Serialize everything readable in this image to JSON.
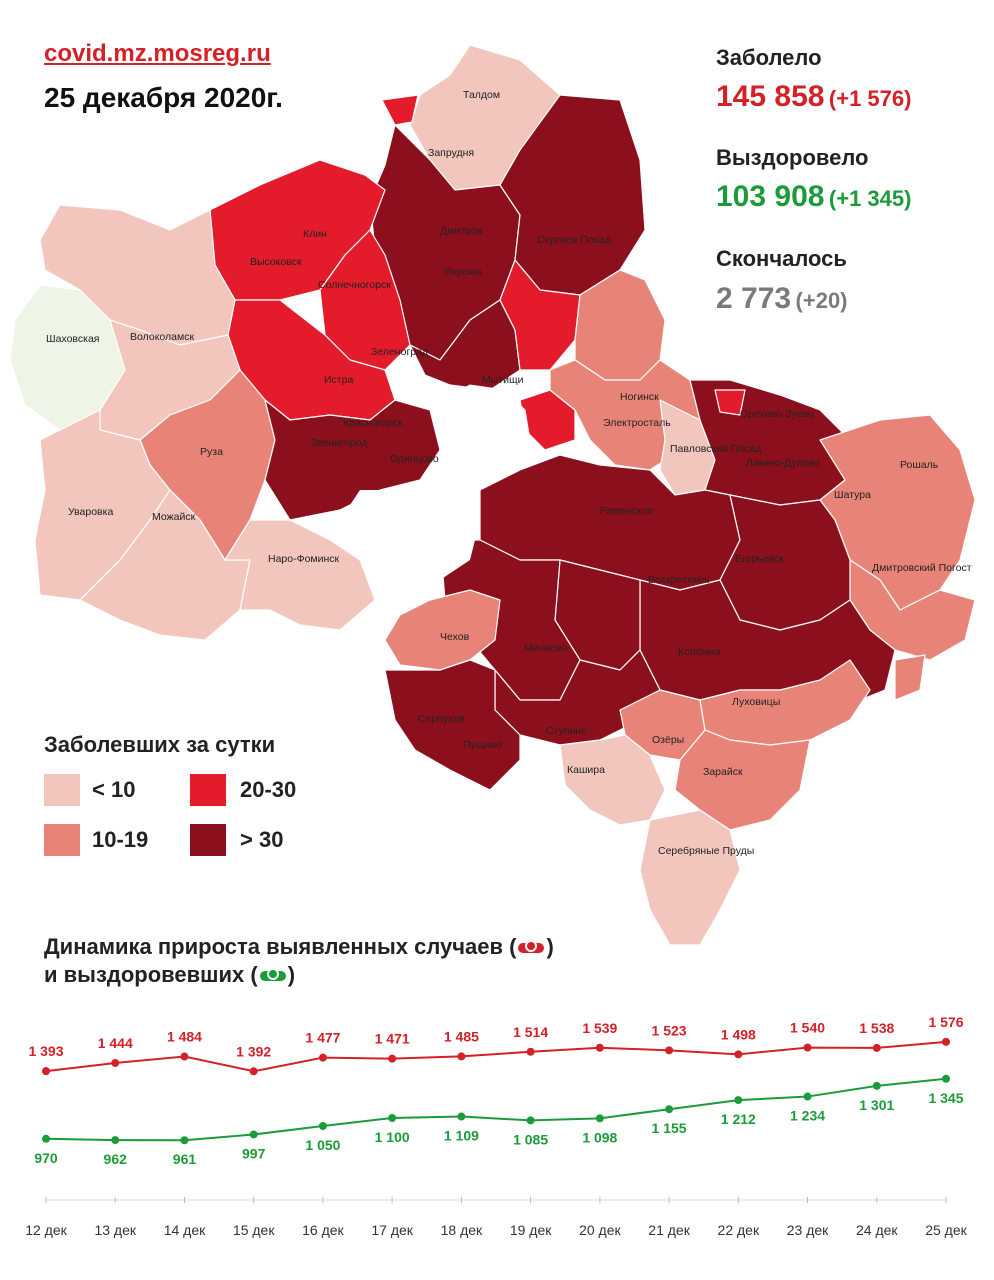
{
  "header": {
    "site": "covid.mz.mosreg.ru",
    "date": "25 декабря 2020г."
  },
  "stats": {
    "sick_label": "Заболело",
    "sick_value": "145 858",
    "sick_delta": "(+1 576)",
    "recovered_label": "Выздоровело",
    "recovered_value": "103 908",
    "recovered_delta": "(+1 345)",
    "deaths_label": "Скончалось",
    "deaths_value": "2 773",
    "deaths_delta": "(+20)"
  },
  "colors": {
    "lt10": "#f2c6bd",
    "c10_19": "#e88477",
    "c20_30": "#e31b2b",
    "gt30": "#8c0f1d",
    "none": "#eef5e6",
    "sick_line": "#d42027",
    "rec_line": "#1c9b3a"
  },
  "map_labels": [
    "Талдом",
    "Запрудня",
    "Дмитров",
    "Яхрома",
    "Сергиев Посад",
    "Клин",
    "Высоковск",
    "Солнечногорск",
    "Шаховская",
    "Волоколамск",
    "Зеленоград",
    "Истра",
    "Мытищи",
    "Красногорск",
    "Ногинск",
    "Электросталь",
    "Орехово-Зуево",
    "Павловский Посад",
    "Ликино-Дулёво",
    "Рошаль",
    "Шатура",
    "Руза",
    "Звенигород",
    "Одинцово",
    "Раменское",
    "Уваровка",
    "Можайск",
    "Наро-Фоминск",
    "Чехов",
    "Мичнево",
    "Воскресенск",
    "Егорьевск",
    "Коломна",
    "Дмитровский Погост",
    "Серпухов",
    "Пущино",
    "Ступино",
    "Озёры",
    "Луховицы",
    "Кашира",
    "Зарайск",
    "Серебряные Пруды"
  ],
  "legend": {
    "title": "Заболевших за сутки",
    "items": [
      {
        "label": "< 10",
        "color": "#f2c6bd"
      },
      {
        "label": "20-30",
        "color": "#e31b2b"
      },
      {
        "label": "10-19",
        "color": "#e88477"
      },
      {
        "label": "> 30",
        "color": "#8c0f1d"
      }
    ]
  },
  "chart_title": {
    "line1": "Динамика прироста выявленных случаев (",
    "line1_end": ")",
    "line2": "и выздоровевших (",
    "line2_end": ")"
  },
  "chart_data": {
    "type": "line",
    "title": "Динамика прироста выявленных случаев и выздоровевших",
    "x": [
      "12 дек",
      "13 дек",
      "14 дек",
      "15 дек",
      "16 дек",
      "17 дек",
      "18 дек",
      "19 дек",
      "20 дек",
      "21 дек",
      "22 дек",
      "23 дек",
      "24 дек",
      "25 дек"
    ],
    "series": [
      {
        "name": "выявленные случаи",
        "color": "#d42027",
        "values": [
          1393,
          1444,
          1484,
          1392,
          1477,
          1471,
          1485,
          1514,
          1539,
          1523,
          1498,
          1540,
          1538,
          1576
        ],
        "labels": [
          "1 393",
          "1 444",
          "1 484",
          "1 392",
          "1 477",
          "1 471",
          "1 485",
          "1 514",
          "1 539",
          "1 523",
          "1 498",
          "1 540",
          "1 538",
          "1 576"
        ]
      },
      {
        "name": "выздоровевшие",
        "color": "#1c9b3a",
        "values": [
          970,
          962,
          961,
          997,
          1050,
          1100,
          1109,
          1085,
          1098,
          1155,
          1212,
          1234,
          1301,
          1345
        ],
        "labels": [
          "970",
          "962",
          "961",
          "997",
          "1 050",
          "1 100",
          "1 109",
          "1 085",
          "1 098",
          "1 155",
          "1 212",
          "1 234",
          "1 301",
          "1 345"
        ]
      }
    ]
  }
}
